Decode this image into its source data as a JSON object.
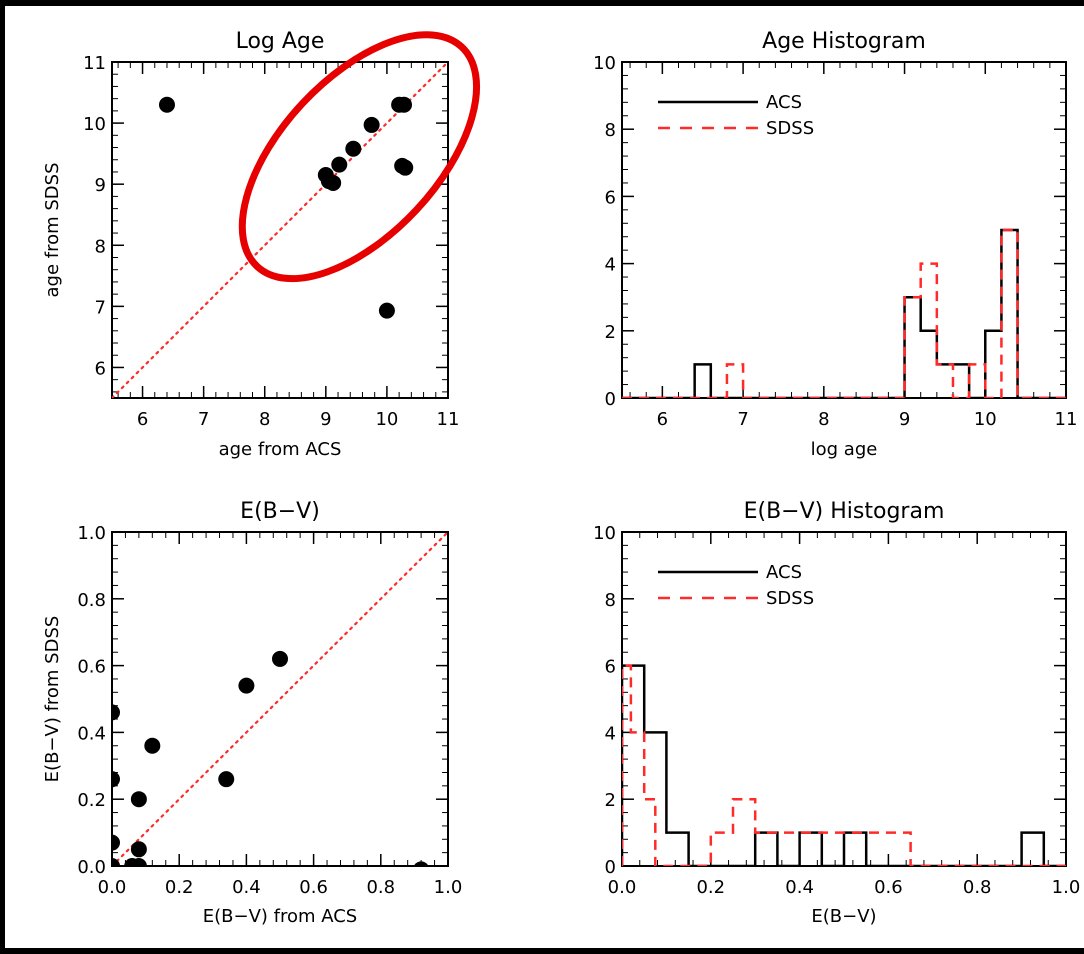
{
  "colors": {
    "frame": "#ffffff",
    "page": "#000000",
    "acs": "#000000",
    "sdss": "#ff2a2a",
    "annotation": "#e60000"
  },
  "chart_data": [
    {
      "id": "log-age",
      "type": "scatter",
      "title": "Log Age",
      "xlabel": "age from ACS",
      "ylabel": "age from SDSS",
      "xlim": [
        5.5,
        11
      ],
      "ylim": [
        5.5,
        11
      ],
      "xticks": [
        "6",
        "7",
        "8",
        "9",
        "10",
        "11"
      ],
      "yticks": [
        "6",
        "7",
        "8",
        "9",
        "10",
        "11"
      ],
      "one_to_one_line": true,
      "annotation": "red ellipse around points near the one-to-one line",
      "points": [
        {
          "x": 6.4,
          "y": 10.3
        },
        {
          "x": 9.0,
          "y": 9.15
        },
        {
          "x": 9.05,
          "y": 9.05
        },
        {
          "x": 9.12,
          "y": 9.02
        },
        {
          "x": 9.22,
          "y": 9.32
        },
        {
          "x": 9.45,
          "y": 9.58
        },
        {
          "x": 9.75,
          "y": 9.97
        },
        {
          "x": 10.2,
          "y": 10.3
        },
        {
          "x": 10.28,
          "y": 10.3
        },
        {
          "x": 10.25,
          "y": 9.3
        },
        {
          "x": 10.3,
          "y": 9.27
        },
        {
          "x": 10.0,
          "y": 6.93
        }
      ]
    },
    {
      "id": "age-histogram",
      "type": "histogram",
      "title": "Age Histogram",
      "xlabel": "log age",
      "xlim": [
        5.5,
        11
      ],
      "ylim": [
        0,
        10
      ],
      "xticks": [
        "6",
        "7",
        "8",
        "9",
        "10",
        "11"
      ],
      "yticks": [
        "0",
        "2",
        "4",
        "6",
        "8",
        "10"
      ],
      "legend": [
        "ACS",
        "SDSS"
      ],
      "legend_position": "top-left",
      "series": [
        {
          "name": "ACS",
          "bins": [
            {
              "from": 6.4,
              "to": 6.6,
              "count": 1
            },
            {
              "from": 9.0,
              "to": 9.2,
              "count": 3
            },
            {
              "from": 9.2,
              "to": 9.4,
              "count": 2
            },
            {
              "from": 9.4,
              "to": 9.6,
              "count": 1
            },
            {
              "from": 9.6,
              "to": 9.8,
              "count": 1
            },
            {
              "from": 9.8,
              "to": 10.0,
              "count": 0
            },
            {
              "from": 10.0,
              "to": 10.2,
              "count": 2
            },
            {
              "from": 10.2,
              "to": 10.4,
              "count": 5
            }
          ]
        },
        {
          "name": "SDSS",
          "bins": [
            {
              "from": 6.8,
              "to": 7.0,
              "count": 1
            },
            {
              "from": 9.0,
              "to": 9.2,
              "count": 3
            },
            {
              "from": 9.2,
              "to": 9.4,
              "count": 4
            },
            {
              "from": 9.4,
              "to": 9.6,
              "count": 1
            },
            {
              "from": 9.6,
              "to": 9.8,
              "count": 0
            },
            {
              "from": 9.8,
              "to": 10.0,
              "count": 1
            },
            {
              "from": 10.0,
              "to": 10.2,
              "count": 0
            },
            {
              "from": 10.2,
              "to": 10.4,
              "count": 5
            }
          ]
        }
      ]
    },
    {
      "id": "ebv",
      "type": "scatter",
      "title": "E(B−V)",
      "xlabel": "E(B−V) from ACS",
      "ylabel": "E(B−V) from SDSS",
      "xlim": [
        0,
        1
      ],
      "ylim": [
        0,
        1
      ],
      "xticks": [
        "0.0",
        "0.2",
        "0.4",
        "0.6",
        "0.8",
        "1.0"
      ],
      "yticks": [
        "0.0",
        "0.2",
        "0.4",
        "0.6",
        "0.8",
        "1.0"
      ],
      "one_to_one_line": true,
      "points": [
        {
          "x": 0.0,
          "y": 0.46
        },
        {
          "x": 0.0,
          "y": 0.26
        },
        {
          "x": 0.0,
          "y": 0.07
        },
        {
          "x": 0.0,
          "y": 0.0
        },
        {
          "x": 0.06,
          "y": 0.0
        },
        {
          "x": 0.08,
          "y": 0.0
        },
        {
          "x": 0.08,
          "y": 0.05
        },
        {
          "x": 0.08,
          "y": 0.2
        },
        {
          "x": 0.12,
          "y": 0.36
        },
        {
          "x": 0.34,
          "y": 0.26
        },
        {
          "x": 0.4,
          "y": 0.54
        },
        {
          "x": 0.5,
          "y": 0.62
        },
        {
          "x": 0.92,
          "y": -0.01
        }
      ]
    },
    {
      "id": "ebv-histogram",
      "type": "histogram",
      "title": "E(B−V) Histogram",
      "xlabel": "E(B−V)",
      "xlim": [
        0,
        1
      ],
      "ylim": [
        0,
        10
      ],
      "xticks": [
        "0.0",
        "0.2",
        "0.4",
        "0.6",
        "0.8",
        "1.0"
      ],
      "yticks": [
        "0",
        "2",
        "4",
        "6",
        "8",
        "10"
      ],
      "legend": [
        "ACS",
        "SDSS"
      ],
      "legend_position": "top-left",
      "series": [
        {
          "name": "ACS",
          "bins": [
            {
              "from": 0.0,
              "to": 0.05,
              "count": 6
            },
            {
              "from": 0.05,
              "to": 0.1,
              "count": 4
            },
            {
              "from": 0.1,
              "to": 0.15,
              "count": 1
            },
            {
              "from": 0.3,
              "to": 0.35,
              "count": 1
            },
            {
              "from": 0.4,
              "to": 0.45,
              "count": 1
            },
            {
              "from": 0.5,
              "to": 0.55,
              "count": 1
            },
            {
              "from": 0.9,
              "to": 0.95,
              "count": 1
            }
          ]
        },
        {
          "name": "SDSS",
          "bins": [
            {
              "from": 0.0,
              "to": 0.02,
              "count": 6
            },
            {
              "from": 0.02,
              "to": 0.05,
              "count": 4
            },
            {
              "from": 0.05,
              "to": 0.075,
              "count": 2
            },
            {
              "from": 0.075,
              "to": 0.1,
              "count": 0
            },
            {
              "from": 0.2,
              "to": 0.25,
              "count": 1
            },
            {
              "from": 0.25,
              "to": 0.3,
              "count": 2
            },
            {
              "from": 0.3,
              "to": 0.35,
              "count": 1
            },
            {
              "from": 0.35,
              "to": 0.4,
              "count": 1
            },
            {
              "from": 0.4,
              "to": 0.45,
              "count": 1
            },
            {
              "from": 0.45,
              "to": 0.5,
              "count": 1
            },
            {
              "from": 0.5,
              "to": 0.55,
              "count": 1
            },
            {
              "from": 0.55,
              "to": 0.6,
              "count": 1
            },
            {
              "from": 0.6,
              "to": 0.65,
              "count": 1
            }
          ]
        }
      ]
    }
  ]
}
